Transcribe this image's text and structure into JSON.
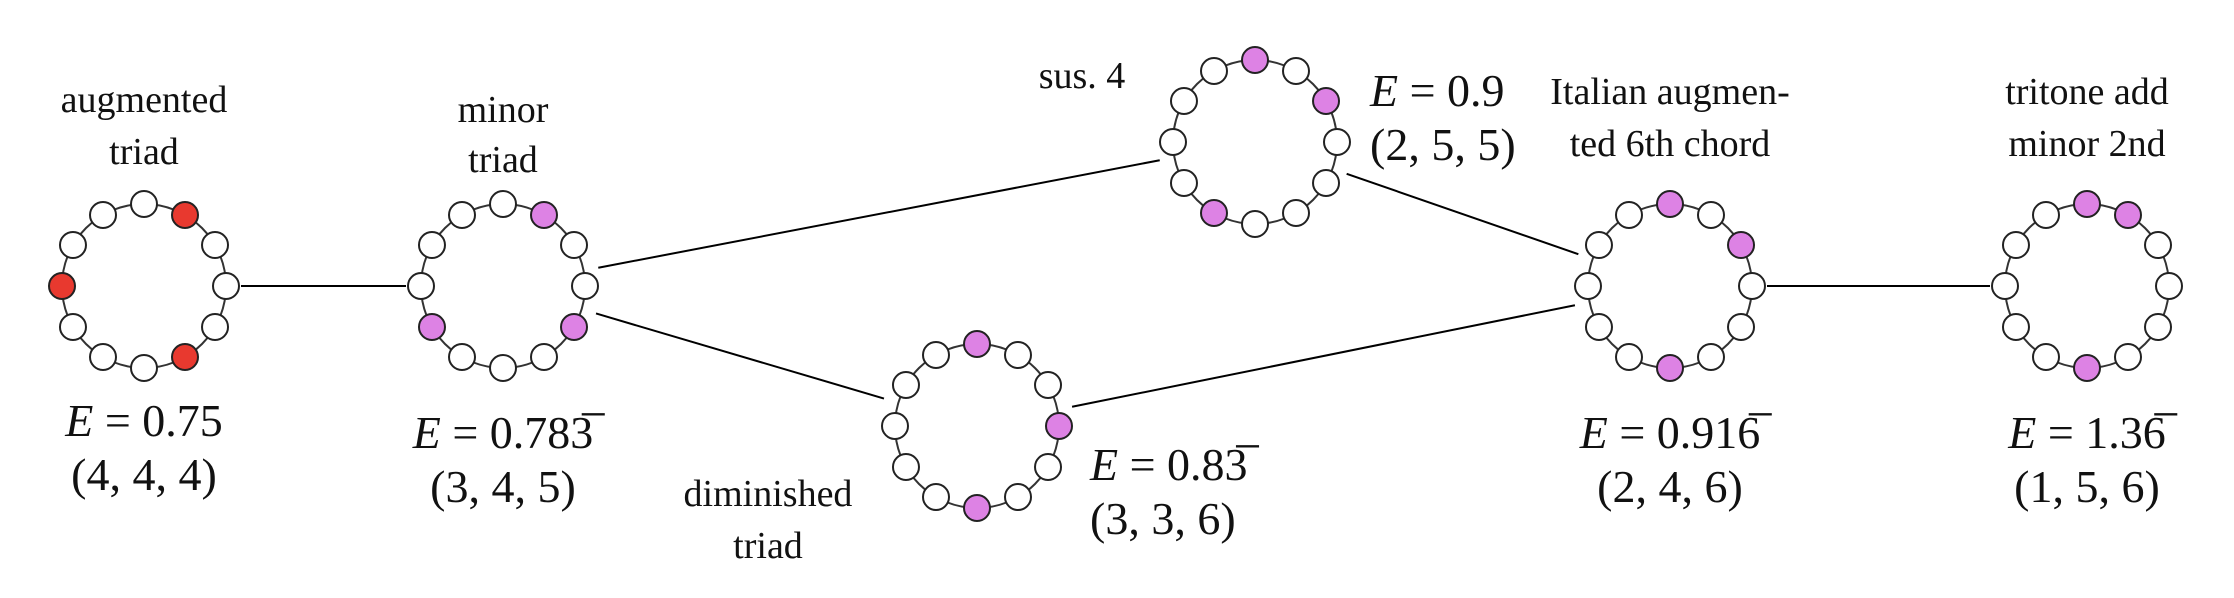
{
  "colors": {
    "augmented": "#e8392f",
    "other": "#dd82e4",
    "empty": "#ffffff"
  },
  "chords": [
    {
      "id": "augmented",
      "name": [
        "augmented",
        "triad"
      ],
      "energy": {
        "lhs": "E",
        "rhs": "= 0.75"
      },
      "interval_vector": "(4, 4, 4)",
      "filled_pcs": [
        0,
        4,
        8
      ],
      "fill": "augmented"
    },
    {
      "id": "minor",
      "name": [
        "minor",
        "triad"
      ],
      "energy": {
        "lhs": "E",
        "rhs": "= 0.783̅"
      },
      "interval_vector": "(3, 4, 5)",
      "filled_pcs": [
        0,
        3,
        7
      ],
      "fill": "other"
    },
    {
      "id": "sus4",
      "name": [
        "sus. 4"
      ],
      "energy": {
        "lhs": "E",
        "rhs": "= 0.9"
      },
      "interval_vector": "(2, 5, 5)",
      "filled_pcs": [
        0,
        2,
        7
      ],
      "fill": "other"
    },
    {
      "id": "diminished",
      "name": [
        "diminished",
        "triad"
      ],
      "energy": {
        "lhs": "E",
        "rhs": "= 0.83̅"
      },
      "interval_vector": "(3, 3, 6)",
      "filled_pcs": [
        0,
        3,
        6
      ],
      "fill": "other"
    },
    {
      "id": "italian",
      "name": [
        "Italian augmen-",
        "ted 6th chord"
      ],
      "energy": {
        "lhs": "E",
        "rhs": "= 0.916̅"
      },
      "interval_vector": "(2, 4, 6)",
      "filled_pcs": [
        0,
        2,
        6
      ],
      "fill": "other"
    },
    {
      "id": "tritone",
      "name": [
        "tritone add",
        "minor 2nd"
      ],
      "energy": {
        "lhs": "E",
        "rhs": "= 1.36̅"
      },
      "interval_vector": "(1, 5, 6)",
      "filled_pcs": [
        0,
        1,
        6
      ],
      "fill": "other"
    }
  ],
  "edges": [
    [
      "augmented",
      "minor"
    ],
    [
      "minor",
      "sus4"
    ],
    [
      "minor",
      "diminished"
    ],
    [
      "sus4",
      "italian"
    ],
    [
      "diminished",
      "italian"
    ],
    [
      "italian",
      "tritone"
    ]
  ]
}
